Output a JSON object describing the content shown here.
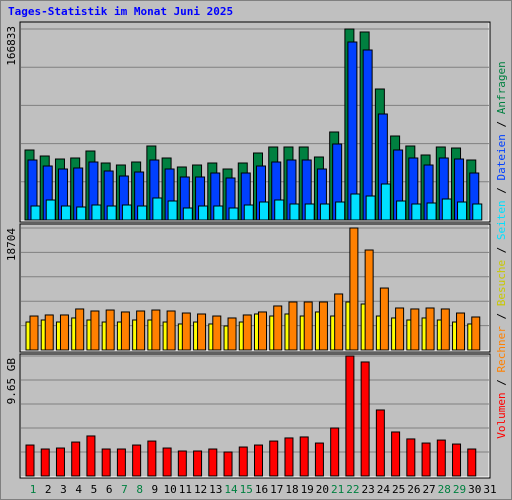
{
  "title": "Tages-Statistik im Monat Juni 2025",
  "weekend_color": "#008040",
  "weekend_indices": [
    0,
    6,
    7,
    13,
    14,
    20,
    21,
    27,
    28
  ],
  "chart_data": [
    {
      "type": "bar",
      "ylim": [
        0,
        166833
      ],
      "yticks": [
        166833
      ],
      "series": [
        {
          "name": "Anfragen",
          "color": "#008040",
          "values": [
            61145,
            55900,
            53280,
            54160,
            60270,
            49790,
            48040,
            50660,
            64640,
            54160,
            46300,
            48040,
            49790,
            44550,
            49790,
            58520,
            63770,
            63770,
            63770,
            55030,
            76870,
            166833,
            164220,
            114430,
            73370,
            64640,
            56780,
            63770,
            62890,
            52410,
            null
          ]
        },
        {
          "name": "Dateien",
          "color": "#0040ff",
          "values": [
            52410,
            47170,
            44550,
            45420,
            50660,
            42800,
            38430,
            41930,
            52410,
            44550,
            37560,
            37560,
            41050,
            36690,
            41050,
            47170,
            50660,
            52410,
            52410,
            44550,
            66390,
            155480,
            148500,
            92590,
            61150,
            54160,
            48040,
            54160,
            53280,
            41050,
            null
          ]
        },
        {
          "name": "Seiten",
          "color": "#00e0ff",
          "values": [
            12230,
            17470,
            12230,
            11360,
            13100,
            12230,
            13100,
            12230,
            19220,
            16600,
            10480,
            12230,
            12230,
            10480,
            13100,
            15720,
            17470,
            13980,
            13980,
            13980,
            15720,
            22710,
            20960,
            31450,
            16600,
            13980,
            14850,
            18340,
            15720,
            13980,
            null
          ]
        }
      ]
    },
    {
      "type": "bar",
      "ylim": [
        0,
        18704
      ],
      "yticks": [
        18704
      ],
      "series": [
        {
          "name": "Besuche",
          "color": "#ffff00",
          "values": [
            4290,
            4600,
            4290,
            4910,
            4600,
            4290,
            4290,
            4600,
            4600,
            4290,
            3990,
            4290,
            3990,
            3680,
            4290,
            5520,
            5210,
            5520,
            5210,
            5830,
            5210,
            7360,
            7050,
            5210,
            4910,
            4600,
            4910,
            4600,
            4290,
            3990,
            null
          ]
        },
        {
          "name": "Rechner",
          "color": "#ff8000",
          "values": [
            5210,
            5370,
            5370,
            6290,
            5980,
            6130,
            5830,
            5980,
            6130,
            5980,
            5670,
            5520,
            5210,
            4910,
            5370,
            5830,
            6750,
            7360,
            7360,
            7360,
            8590,
            18704,
            15330,
            9500,
            6440,
            6290,
            6440,
            6290,
            5670,
            5060,
            null
          ]
        }
      ]
    },
    {
      "type": "bar",
      "ylim": [
        0,
        9.65
      ],
      "yticks": [
        {
          "value": 9.65,
          "label": "9.65 GB"
        }
      ],
      "categories": [
        "1",
        "2",
        "3",
        "4",
        "5",
        "6",
        "7",
        "8",
        "9",
        "10",
        "11",
        "12",
        "13",
        "14",
        "15",
        "16",
        "17",
        "18",
        "19",
        "20",
        "21",
        "22",
        "23",
        "24",
        "25",
        "26",
        "27",
        "28",
        "29",
        "30",
        "31"
      ],
      "series": [
        {
          "name": "Volumen",
          "color": "#ff0000",
          "values": [
            2.49,
            2.17,
            2.25,
            2.73,
            3.22,
            2.17,
            2.17,
            2.49,
            2.81,
            2.25,
            2.01,
            2.01,
            2.17,
            1.93,
            2.33,
            2.49,
            2.81,
            3.06,
            3.14,
            2.65,
            3.86,
            9.65,
            9.17,
            5.31,
            3.54,
            2.98,
            2.65,
            2.89,
            2.57,
            2.17,
            null
          ]
        }
      ]
    }
  ]
}
